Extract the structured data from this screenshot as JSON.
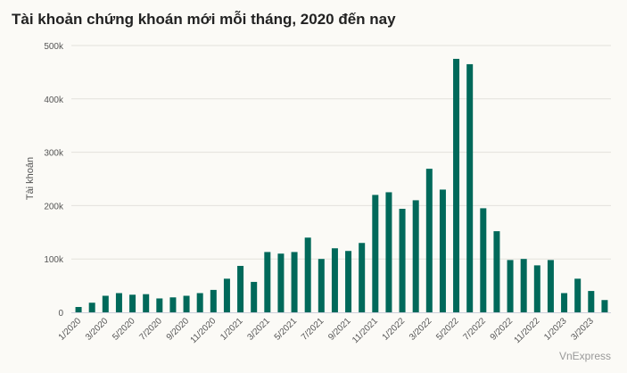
{
  "title": "Tài khoản chứng khoán mới mỗi tháng, 2020 đến nay",
  "source": "VnExpress",
  "colors": {
    "bar": "#00695a",
    "grid": "#e3e1dc"
  },
  "chart_data": {
    "type": "bar",
    "title": "Tài khoản chứng khoán mới mỗi tháng, 2020 đến nay",
    "xlabel": "",
    "ylabel": "Tài khoản",
    "ylim": [
      0,
      500000
    ],
    "yticks": [
      0,
      100000,
      200000,
      300000,
      400000,
      500000
    ],
    "ytick_labels": [
      "0",
      "100k",
      "200k",
      "300k",
      "400k",
      "500k"
    ],
    "grid": true,
    "categories": [
      "1/2020",
      "2/2020",
      "3/2020",
      "4/2020",
      "5/2020",
      "6/2020",
      "7/2020",
      "8/2020",
      "9/2020",
      "10/2020",
      "11/2020",
      "12/2020",
      "1/2021",
      "2/2021",
      "3/2021",
      "4/2021",
      "5/2021",
      "6/2021",
      "7/2021",
      "8/2021",
      "9/2021",
      "10/2021",
      "11/2021",
      "12/2021",
      "1/2022",
      "2/2022",
      "3/2022",
      "4/2022",
      "5/2022",
      "6/2022",
      "7/2022",
      "8/2022",
      "9/2022",
      "10/2022",
      "11/2022",
      "12/2022",
      "1/2023",
      "2/2023",
      "3/2023",
      "4/2023"
    ],
    "xtick_labels": [
      "1/2020",
      "3/2020",
      "5/2020",
      "7/2020",
      "9/2020",
      "11/2020",
      "1/2021",
      "3/2021",
      "5/2021",
      "7/2021",
      "9/2021",
      "11/2021",
      "1/2022",
      "3/2022",
      "5/2022",
      "7/2022",
      "9/2022",
      "11/2022",
      "1/2023",
      "3/2023"
    ],
    "values": [
      10000,
      18000,
      31000,
      36000,
      33000,
      34000,
      26000,
      28000,
      31000,
      36000,
      42000,
      63000,
      87000,
      57000,
      113000,
      110000,
      113000,
      140000,
      100000,
      120000,
      115000,
      130000,
      220000,
      225000,
      194000,
      210000,
      269000,
      230000,
      475000,
      465000,
      195000,
      152000,
      98000,
      100000,
      88000,
      98000,
      36000,
      63000,
      40000,
      23000
    ]
  }
}
